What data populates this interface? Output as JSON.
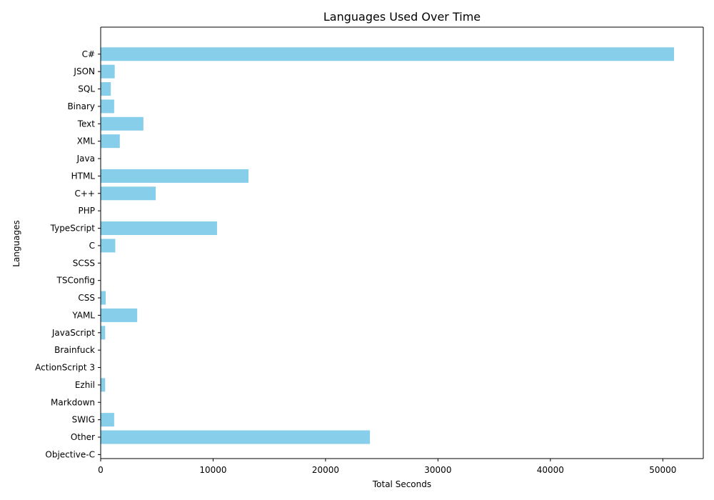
{
  "chart_data": {
    "type": "bar",
    "orientation": "horizontal",
    "title": "Languages Used Over Time",
    "xlabel": "Total Seconds",
    "ylabel": "Languages",
    "xlim": [
      0,
      53600
    ],
    "x_ticks": [
      0,
      10000,
      20000,
      30000,
      40000,
      50000
    ],
    "grid": false,
    "bar_color": "#87ceeb",
    "categories": [
      "C#",
      "JSON",
      "SQL",
      "Binary",
      "Text",
      "XML",
      "Java",
      "HTML",
      "C++",
      "PHP",
      "TypeScript",
      "C",
      "SCSS",
      "TSConfig",
      "CSS",
      "YAML",
      "JavaScript",
      "Brainfuck",
      "ActionScript 3",
      "Ezhil",
      "Markdown",
      "SWIG",
      "Other",
      "Objective-C"
    ],
    "values": [
      51000,
      1250,
      900,
      1200,
      3800,
      1700,
      0,
      13150,
      4900,
      0,
      10350,
      1300,
      0,
      0,
      450,
      3250,
      400,
      0,
      0,
      400,
      0,
      1200,
      23950,
      0
    ]
  }
}
